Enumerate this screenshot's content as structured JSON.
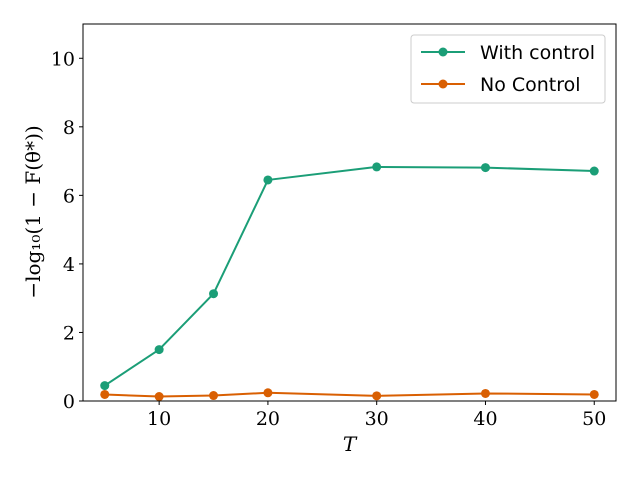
{
  "chart_data": {
    "type": "line",
    "xlabel": "T",
    "ylabel": "−log₁₀(1 − F(θ*))",
    "xlim": [
      3,
      52
    ],
    "ylim": [
      0,
      11
    ],
    "xticks": [
      10,
      20,
      30,
      40,
      50
    ],
    "yticks": [
      0,
      2,
      4,
      6,
      8,
      10
    ],
    "grid": false,
    "legend_position": "top-right",
    "series": [
      {
        "name": "With control",
        "color": "#1b9e77",
        "x": [
          5,
          10,
          15,
          20,
          30,
          40,
          50
        ],
        "y": [
          0.45,
          1.5,
          3.13,
          6.45,
          6.83,
          6.81,
          6.71
        ]
      },
      {
        "name": "No Control",
        "color": "#d95f02",
        "x": [
          5,
          10,
          15,
          20,
          30,
          40,
          50
        ],
        "y": [
          0.19,
          0.13,
          0.16,
          0.24,
          0.15,
          0.22,
          0.19
        ]
      }
    ]
  }
}
